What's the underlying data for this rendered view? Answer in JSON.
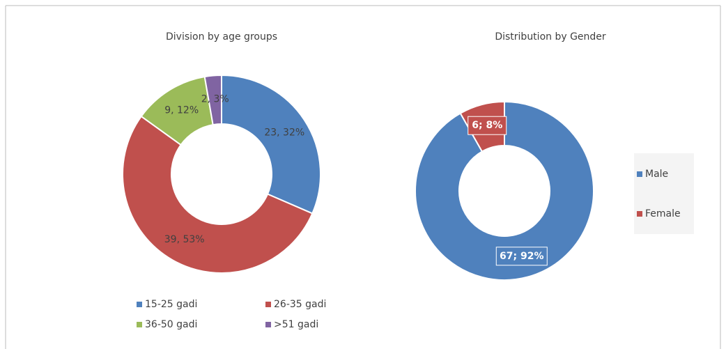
{
  "chart_data": [
    {
      "type": "pie",
      "title": "Division by age groups",
      "categories": [
        "15-25 gadi",
        "26-35 gadi",
        "36-50 gadi",
        ">51 gadi"
      ],
      "values": [
        23,
        39,
        9,
        2
      ],
      "value_labels": [
        "23, 32%",
        "39, 53%",
        "9, 12%",
        "2, 3%"
      ],
      "colors": [
        "#4f81bd",
        "#c0504d",
        "#9bbb59",
        "#8064a2"
      ],
      "legend": "bottom"
    },
    {
      "type": "pie",
      "title": "Distribution by Gender",
      "categories": [
        "Male",
        "Female"
      ],
      "values": [
        67,
        6
      ],
      "value_labels": [
        "67; 92%",
        "6; 8%"
      ],
      "colors": [
        "#4f81bd",
        "#c0504d"
      ],
      "legend": "right"
    }
  ]
}
